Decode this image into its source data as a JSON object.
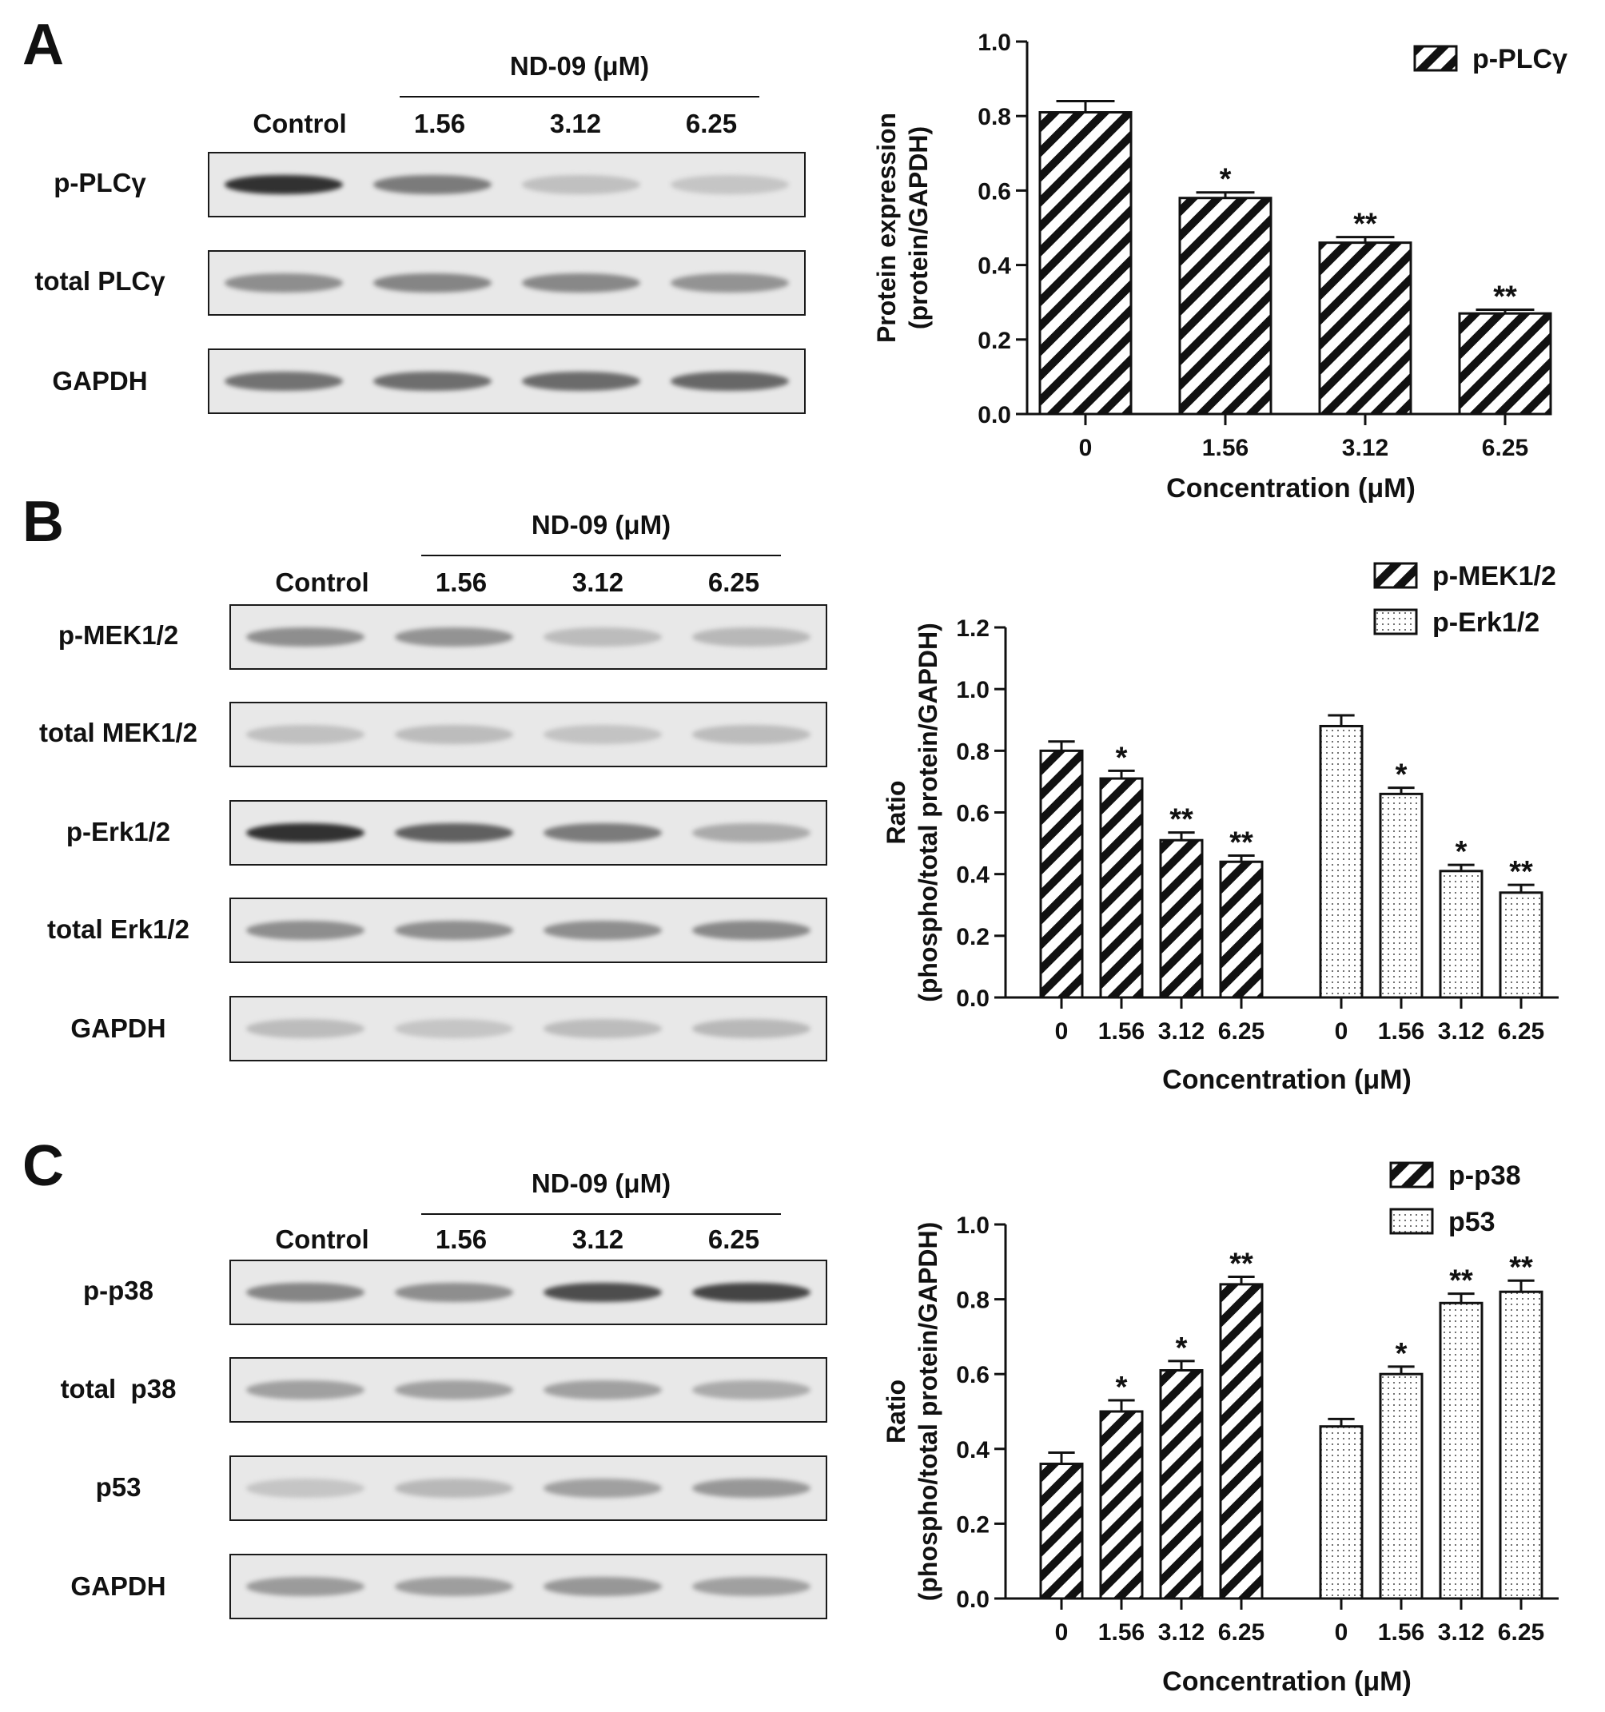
{
  "panels": [
    {
      "letter": "A",
      "treatment_label": "ND-09 (μM)",
      "lane_labels": [
        "Control",
        "1.56",
        "3.12",
        "6.25"
      ],
      "rows": [
        {
          "label": "p-PLCγ",
          "intensity": [
            0.95,
            0.55,
            0.18,
            0.15
          ]
        },
        {
          "label": "total PLCγ",
          "intensity": [
            0.45,
            0.5,
            0.48,
            0.42
          ]
        },
        {
          "label": "GAPDH",
          "intensity": [
            0.6,
            0.62,
            0.64,
            0.66
          ]
        }
      ]
    },
    {
      "letter": "B",
      "treatment_label": "ND-09 (μM)",
      "lane_labels": [
        "Control",
        "1.56",
        "3.12",
        "6.25"
      ],
      "rows": [
        {
          "label": "p-MEK1/2",
          "intensity": [
            0.45,
            0.42,
            0.2,
            0.22
          ]
        },
        {
          "label": "total MEK1/2",
          "intensity": [
            0.18,
            0.2,
            0.16,
            0.2
          ]
        },
        {
          "label": "p-Erk1/2",
          "intensity": [
            0.95,
            0.7,
            0.55,
            0.3
          ]
        },
        {
          "label": "total Erk1/2",
          "intensity": [
            0.45,
            0.45,
            0.45,
            0.48
          ]
        },
        {
          "label": "GAPDH",
          "intensity": [
            0.2,
            0.15,
            0.2,
            0.22
          ]
        }
      ]
    },
    {
      "letter": "C",
      "treatment_label": "ND-09 (μM)",
      "lane_labels": [
        "Control",
        "1.56",
        "3.12",
        "6.25"
      ],
      "rows": [
        {
          "label": "p-p38",
          "intensity": [
            0.5,
            0.45,
            0.8,
            0.85
          ]
        },
        {
          "label": "total  p38",
          "intensity": [
            0.35,
            0.35,
            0.35,
            0.3
          ]
        },
        {
          "label": "p53",
          "intensity": [
            0.15,
            0.22,
            0.35,
            0.4
          ]
        },
        {
          "label": "GAPDH",
          "intensity": [
            0.38,
            0.36,
            0.4,
            0.35
          ]
        }
      ]
    }
  ],
  "chart_data": [
    {
      "type": "bar",
      "categories": [
        "0",
        "1.56",
        "3.12",
        "6.25"
      ],
      "series": [
        {
          "name": "p-PLCγ",
          "pattern": "hatch",
          "values": [
            0.81,
            0.58,
            0.46,
            0.27
          ],
          "errors": [
            0.03,
            0.015,
            0.015,
            0.01
          ],
          "significance": [
            "",
            "*",
            "**",
            "**"
          ]
        }
      ],
      "xlabel": "Concentration (μM)",
      "ylabel": [
        "Protein expression",
        "(protein/GAPDH)"
      ],
      "ylim": [
        0,
        1.0
      ],
      "yticks": [
        "0.0",
        "0.2",
        "0.4",
        "0.6",
        "0.8",
        "1.0"
      ],
      "legend_position": "top-right",
      "grid": false
    },
    {
      "type": "bar",
      "categories": [
        "0",
        "1.56",
        "3.12",
        "6.25"
      ],
      "series": [
        {
          "name": "p-MEK1/2",
          "pattern": "hatch",
          "values": [
            0.8,
            0.71,
            0.51,
            0.44
          ],
          "errors": [
            0.03,
            0.025,
            0.025,
            0.02
          ],
          "significance": [
            "",
            "*",
            "**",
            "**"
          ]
        },
        {
          "name": "p-Erk1/2",
          "pattern": "dots",
          "values": [
            0.88,
            0.66,
            0.41,
            0.34
          ],
          "errors": [
            0.035,
            0.02,
            0.02,
            0.025
          ],
          "significance": [
            "",
            "*",
            "*",
            "**"
          ]
        }
      ],
      "xlabel": "Concentration (μM)",
      "ylabel": [
        "Ratio",
        "(phospho/total protein/GAPDH)"
      ],
      "ylim": [
        0,
        1.2
      ],
      "yticks": [
        "0.0",
        "0.2",
        "0.4",
        "0.6",
        "0.8",
        "1.0",
        "1.2"
      ],
      "legend_position": "top-right",
      "grid": false
    },
    {
      "type": "bar",
      "categories": [
        "0",
        "1.56",
        "3.12",
        "6.25"
      ],
      "series": [
        {
          "name": "p-p38",
          "pattern": "hatch",
          "values": [
            0.36,
            0.5,
            0.61,
            0.84
          ],
          "errors": [
            0.03,
            0.03,
            0.025,
            0.02
          ],
          "significance": [
            "",
            "*",
            "*",
            "**"
          ]
        },
        {
          "name": "p53",
          "pattern": "dots",
          "values": [
            0.46,
            0.6,
            0.79,
            0.82
          ],
          "errors": [
            0.02,
            0.02,
            0.025,
            0.03
          ],
          "significance": [
            "",
            "*",
            "**",
            "**"
          ]
        }
      ],
      "xlabel": "Concentration (μM)",
      "ylabel": [
        "Ratio",
        "(phospho/total protein/GAPDH)"
      ],
      "ylim": [
        0,
        1.0
      ],
      "yticks": [
        "0.0",
        "0.2",
        "0.4",
        "0.6",
        "0.8",
        "1.0"
      ],
      "legend_position": "top-right",
      "grid": false
    }
  ]
}
